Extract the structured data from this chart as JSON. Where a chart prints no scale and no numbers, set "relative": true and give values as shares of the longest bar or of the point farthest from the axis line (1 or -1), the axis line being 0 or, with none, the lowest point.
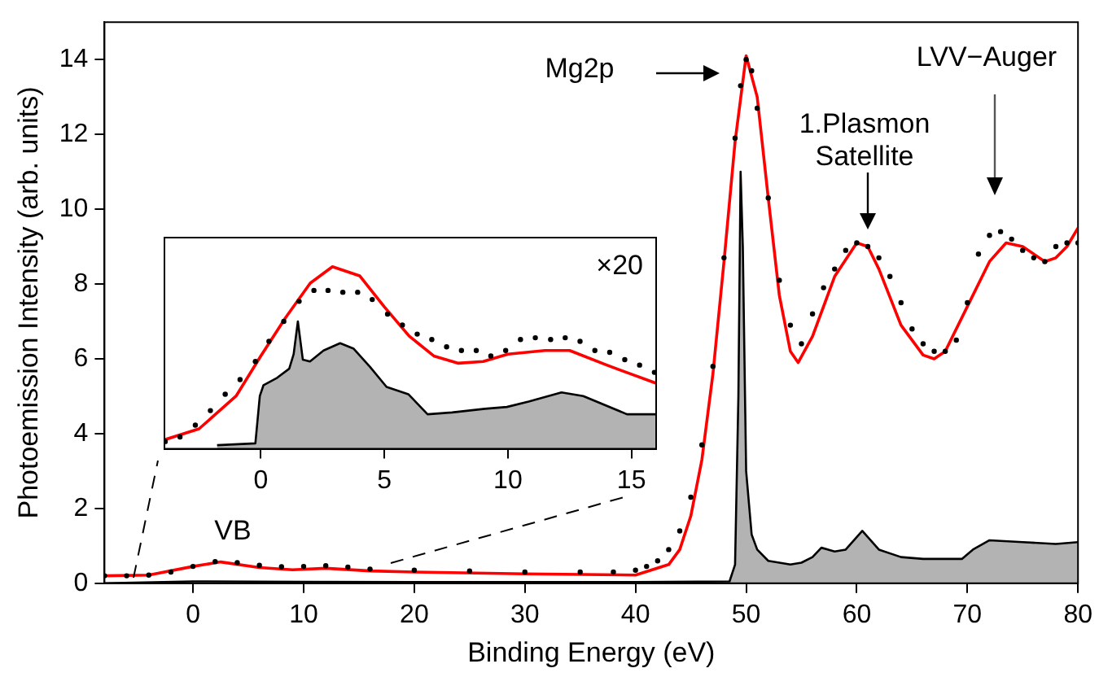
{
  "chart_data": [
    {
      "type": "line",
      "xlabel": "Binding Energy (eV)",
      "ylabel": "Photoemission Intensity (arb. units)",
      "xlim": [
        -8,
        80
      ],
      "xticks": [
        0,
        10,
        20,
        30,
        40,
        50,
        60,
        70,
        80
      ],
      "ylim": [
        0,
        15
      ],
      "yticks": [
        0,
        2,
        4,
        6,
        8,
        10,
        12,
        14
      ],
      "annotations": [
        "VB",
        "Mg2p",
        "1.Plasmon\nSatellite",
        "LVV−Auger"
      ],
      "series": [
        {
          "type": "area",
          "color": "#b3b3b3",
          "x": [
            -8,
            0,
            10,
            20,
            30,
            40,
            48.5,
            49,
            49.3,
            49.5,
            49.7,
            50,
            50.5,
            51,
            52,
            54,
            55,
            56,
            56.8,
            58,
            59,
            60.5,
            62,
            64,
            66,
            68,
            69.5,
            70.5,
            72,
            75,
            78,
            80
          ],
          "values": [
            0,
            0.05,
            0.04,
            0.03,
            0.03,
            0.03,
            0.05,
            0.5,
            5,
            11,
            9,
            3,
            1.3,
            0.9,
            0.6,
            0.5,
            0.55,
            0.7,
            0.95,
            0.85,
            0.9,
            1.4,
            0.9,
            0.7,
            0.65,
            0.65,
            0.65,
            0.9,
            1.15,
            1.1,
            1.05,
            1.1
          ]
        },
        {
          "type": "line",
          "color": "#ff0000",
          "marker": "none",
          "x": [
            -8,
            -4,
            0,
            2.5,
            6,
            9,
            12,
            16,
            20,
            30,
            40,
            43,
            44,
            45,
            46,
            47,
            48,
            49,
            50,
            51,
            52,
            53,
            54,
            54.7,
            56,
            58,
            60,
            61,
            62,
            64,
            66,
            67,
            68,
            70,
            72,
            73.5,
            75,
            77,
            78,
            79,
            80
          ],
          "values": [
            0.2,
            0.22,
            0.45,
            0.57,
            0.42,
            0.36,
            0.4,
            0.33,
            0.3,
            0.25,
            0.22,
            0.5,
            0.9,
            1.8,
            3.3,
            5.6,
            8.6,
            11.8,
            14.1,
            13,
            10.3,
            7.7,
            6.2,
            5.9,
            6.6,
            8.2,
            9.1,
            9,
            8.4,
            6.9,
            6.1,
            6,
            6.2,
            7.4,
            8.6,
            9.1,
            9,
            8.6,
            8.7,
            9,
            9.5
          ]
        },
        {
          "type": "scatter",
          "color": "#000000",
          "marker": "circle",
          "x": [
            -8,
            -6,
            -4,
            -2,
            0,
            2,
            4,
            6,
            8,
            10,
            12,
            14,
            16,
            20,
            25,
            30,
            35,
            38,
            40,
            41,
            42,
            43,
            44,
            45,
            46,
            47,
            48,
            49,
            49.5,
            50,
            50.5,
            51,
            52,
            53,
            54,
            55,
            56,
            57,
            58,
            59,
            60,
            61,
            62,
            63,
            64,
            65,
            66,
            67,
            68,
            69,
            70,
            71,
            72,
            73,
            74,
            75,
            76,
            77,
            78,
            79,
            80
          ],
          "values": [
            0.2,
            0.2,
            0.22,
            0.3,
            0.45,
            0.58,
            0.55,
            0.48,
            0.44,
            0.45,
            0.47,
            0.43,
            0.38,
            0.35,
            0.33,
            0.3,
            0.3,
            0.3,
            0.35,
            0.45,
            0.6,
            0.9,
            1.4,
            2.3,
            3.7,
            5.8,
            8.7,
            11.9,
            13.3,
            14,
            13.7,
            12.7,
            10.3,
            8.1,
            6.9,
            6.4,
            7.2,
            7.9,
            8.4,
            8.9,
            9.1,
            9,
            8.7,
            8.2,
            7.5,
            6.8,
            6.4,
            6.2,
            6.2,
            6.5,
            7.5,
            8.8,
            9.3,
            9.4,
            9.2,
            8.9,
            8.7,
            8.6,
            9,
            9.1,
            9.1
          ]
        }
      ]
    },
    {
      "type": "line",
      "relative": true,
      "xlim": [
        -3.9,
        16
      ],
      "xticks": [
        0,
        5,
        10,
        15
      ],
      "tick_labels": "x",
      "annotations": [
        "×20"
      ],
      "series": [
        {
          "type": "area",
          "color": "#b3b3b3",
          "x": [
            -1.77,
            -0.22,
            -0.04,
            0.11,
            0.66,
            1.15,
            1.33,
            1.5,
            1.7,
            1.99,
            2.54,
            3.21,
            3.76,
            4.42,
            5.09,
            5.97,
            6.75,
            7.74,
            9.07,
            9.96,
            10.84,
            12.17,
            13.05,
            14.82,
            16
          ],
          "values": [
            0.02,
            0.03,
            0.29,
            0.35,
            0.39,
            0.44,
            0.52,
            0.7,
            0.49,
            0.48,
            0.54,
            0.58,
            0.55,
            0.45,
            0.34,
            0.3,
            0.19,
            0.2,
            0.22,
            0.23,
            0.26,
            0.31,
            0.29,
            0.19,
            0.19
          ]
        },
        {
          "type": "line",
          "color": "#ff0000",
          "marker": "none",
          "x": [
            -3.9,
            -2.5,
            -1,
            0,
            1,
            2,
            2.9,
            4,
            5,
            6,
            7,
            8,
            9,
            10,
            11.5,
            12.5,
            14,
            15,
            16
          ],
          "values": [
            0.05,
            0.11,
            0.29,
            0.51,
            0.72,
            0.91,
            1,
            0.95,
            0.78,
            0.62,
            0.51,
            0.47,
            0.48,
            0.52,
            0.54,
            0.54,
            0.46,
            0.41,
            0.36
          ]
        },
        {
          "type": "scatter",
          "color": "#000000",
          "marker": "circle",
          "x": [
            -3.87,
            -3.27,
            -2.65,
            -2.04,
            -1.44,
            -0.84,
            -0.22,
            0.33,
            0.93,
            1.55,
            2.15,
            2.72,
            3.32,
            3.92,
            4.51,
            5.13,
            5.73,
            6.33,
            6.92,
            7.52,
            8.12,
            8.72,
            9.31,
            9.91,
            10.51,
            11.11,
            11.73,
            12.32,
            12.92,
            13.52,
            14.12,
            14.73,
            15.33,
            15.93
          ],
          "values": [
            0.04,
            0.065,
            0.13,
            0.21,
            0.3,
            0.38,
            0.48,
            0.59,
            0.7,
            0.81,
            0.87,
            0.87,
            0.86,
            0.86,
            0.82,
            0.74,
            0.68,
            0.63,
            0.6,
            0.56,
            0.54,
            0.54,
            0.51,
            0.54,
            0.6,
            0.61,
            0.6,
            0.61,
            0.59,
            0.54,
            0.53,
            0.49,
            0.46,
            0.42
          ]
        }
      ]
    }
  ]
}
